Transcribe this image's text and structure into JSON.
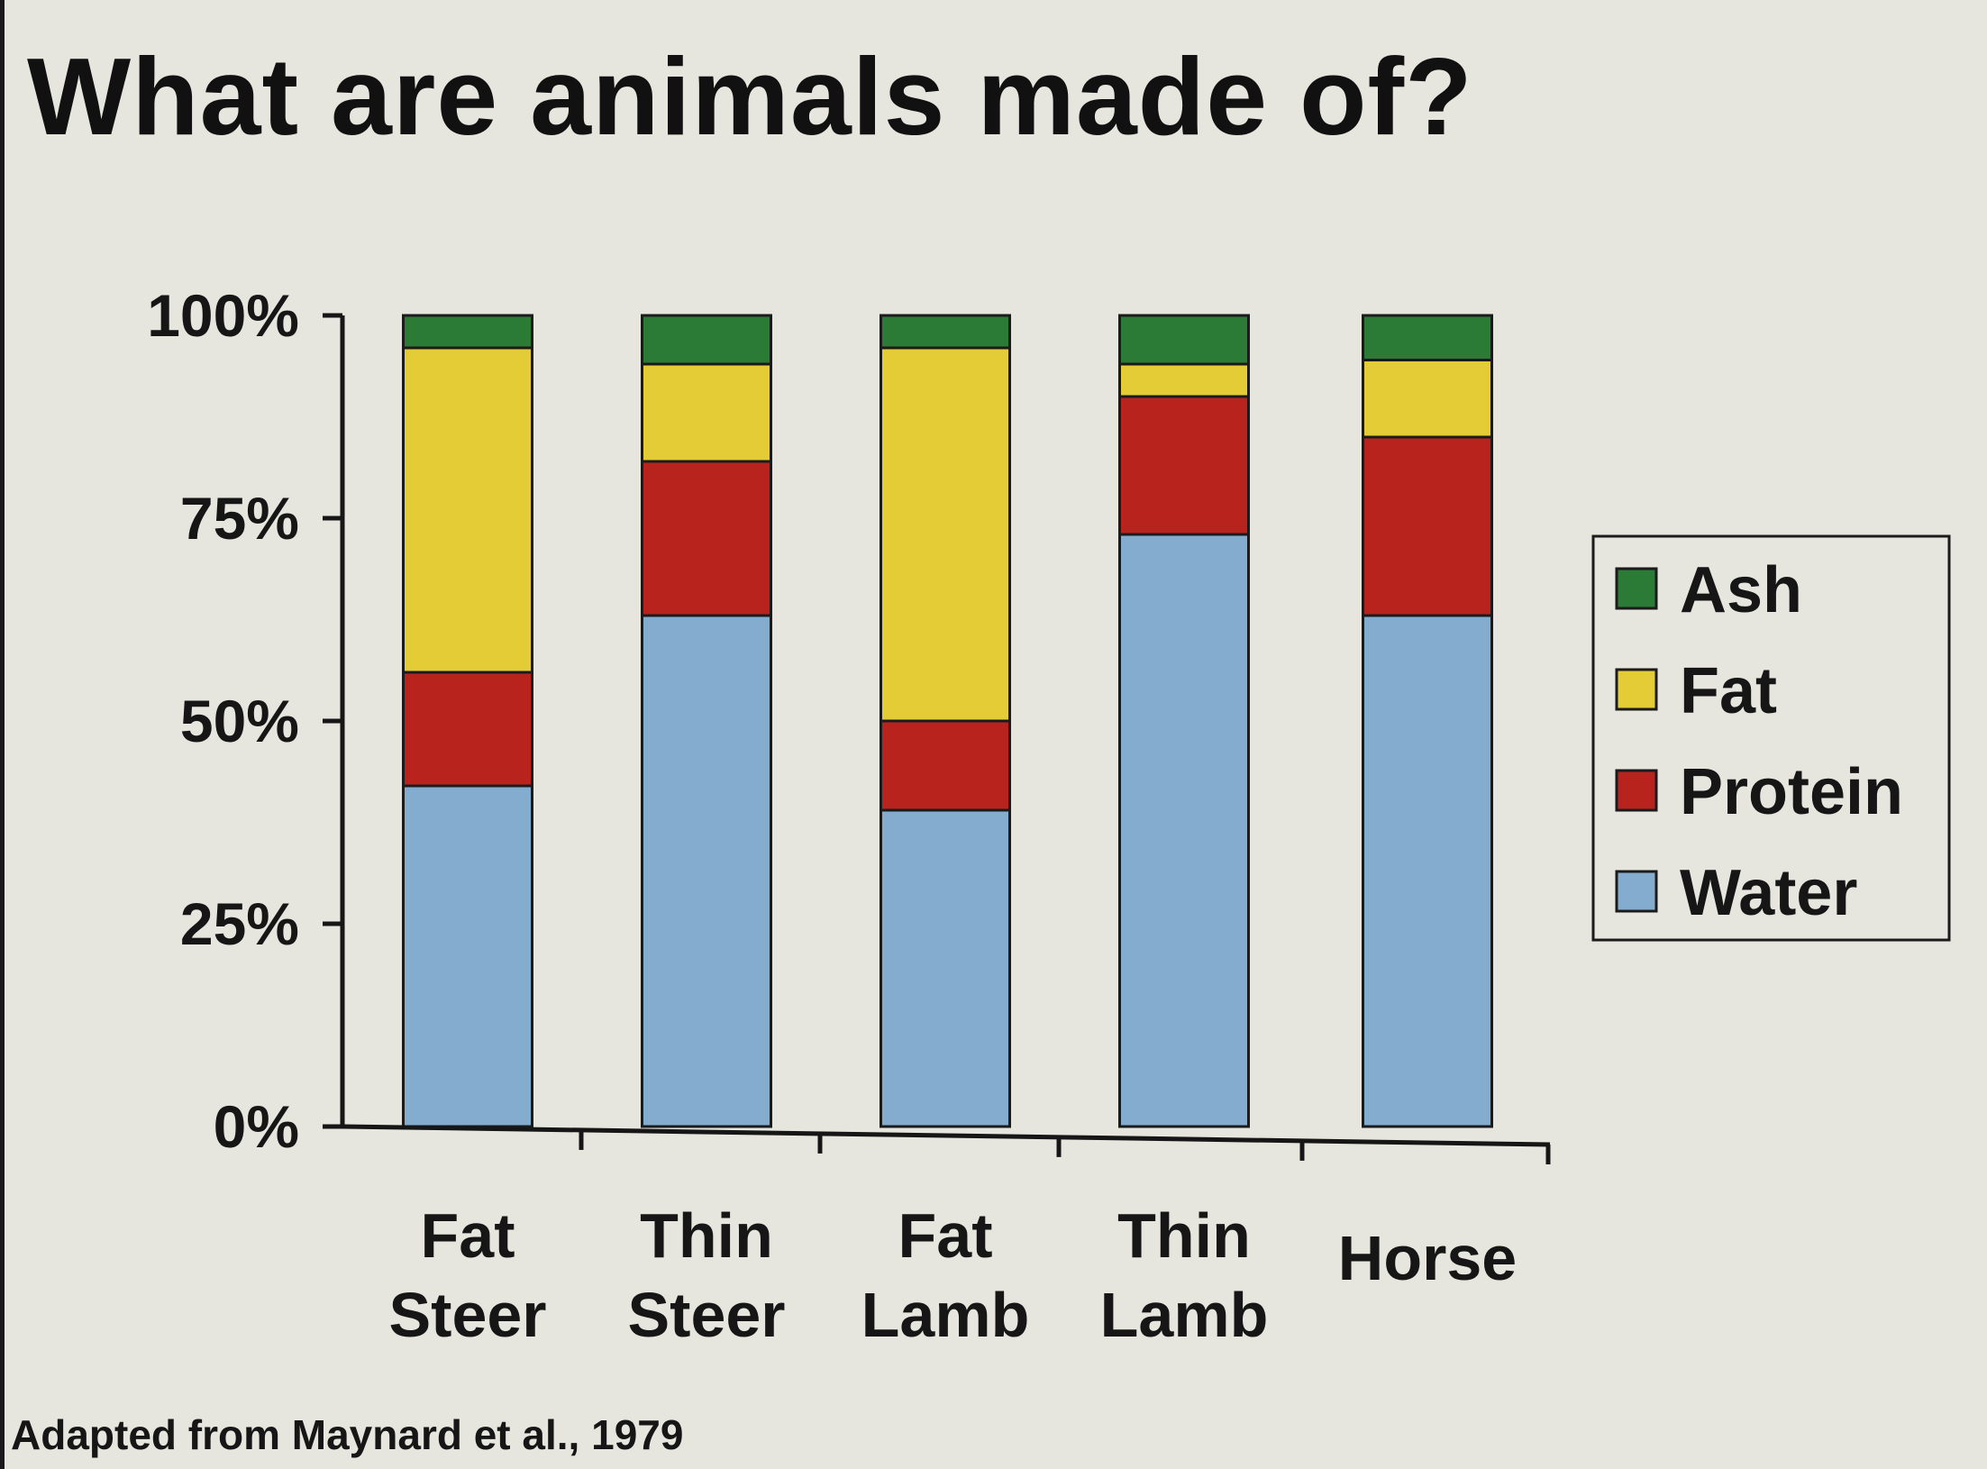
{
  "title": "What are animals made of?",
  "source": "Adapted from Maynard et al., 1979",
  "chart_data": {
    "type": "bar",
    "stacked": true,
    "normalized": true,
    "categories": [
      [
        "Fat",
        "Steer"
      ],
      [
        "Thin",
        "Steer"
      ],
      [
        "Fat",
        "Lamb"
      ],
      [
        "Thin",
        "Lamb"
      ],
      [
        "Horse"
      ]
    ],
    "y_ticks": [
      {
        "value": 0,
        "label": "0%"
      },
      {
        "value": 25,
        "label": "25%"
      },
      {
        "value": 50,
        "label": "50%"
      },
      {
        "value": 75,
        "label": "75%"
      },
      {
        "value": 100,
        "label": "100%"
      }
    ],
    "ylim": [
      0,
      100
    ],
    "grid": false,
    "legend_placement": "right",
    "series": [
      {
        "name": "Water",
        "color": "#84acce",
        "values": [
          42,
          63,
          39,
          73,
          63
        ]
      },
      {
        "name": "Protein",
        "color": "#b8241d",
        "values": [
          14,
          19,
          11,
          17,
          22
        ]
      },
      {
        "name": "Fat",
        "color": "#e3cc35",
        "values": [
          40,
          12,
          46,
          4,
          9.5
        ]
      },
      {
        "name": "Ash",
        "color": "#2b7a36",
        "values": [
          4,
          6,
          4,
          6,
          5.5
        ]
      }
    ],
    "legend_order": [
      "Ash",
      "Fat",
      "Protein",
      "Water"
    ]
  }
}
